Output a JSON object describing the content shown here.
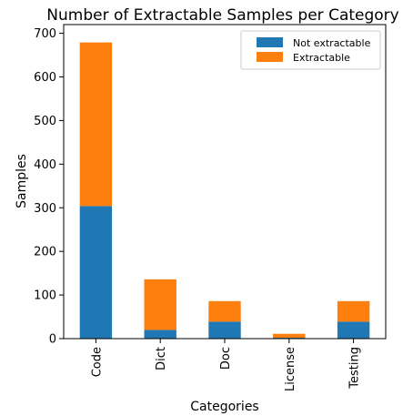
{
  "chart_data": {
    "type": "bar",
    "stacked": true,
    "title": "Number of Extractable Samples per Category",
    "xlabel": "Categories",
    "ylabel": "Samples",
    "categories": [
      "Code",
      "Dict",
      "Doc",
      "License",
      "Testing"
    ],
    "series": [
      {
        "name": "Not extractable",
        "color": "#1f77b4",
        "values": [
          304,
          20,
          39,
          2,
          39
        ]
      },
      {
        "name": "Extractable",
        "color": "#ff7f0e",
        "values": [
          375,
          116,
          47,
          9,
          47
        ]
      }
    ],
    "ylim": [
      0,
      720
    ],
    "yticks": [
      0,
      100,
      200,
      300,
      400,
      500,
      600,
      700
    ],
    "grid": false,
    "legend_position": "top-right"
  }
}
